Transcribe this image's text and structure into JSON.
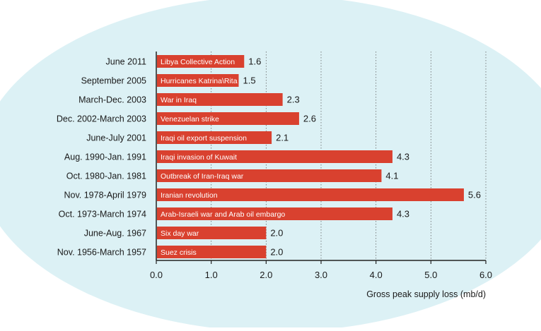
{
  "colors": {
    "background_ellipse": "#dcf1f5",
    "bar": "#d9412f",
    "grid": "#666666",
    "axis": "#222222"
  },
  "chart_data": {
    "type": "bar",
    "orientation": "horizontal",
    "xlabel": "Gross peak supply loss (mb/d)",
    "xlim": [
      0,
      6
    ],
    "xticks": [
      "0.0",
      "1.0",
      "2.0",
      "3.0",
      "4.0",
      "5.0",
      "6.0"
    ],
    "grid": "vertical dotted",
    "bars": [
      {
        "date": "June 2011",
        "event": "Libya Collective Action",
        "value": 1.6,
        "value_label": "1.6"
      },
      {
        "date": "September 2005",
        "event": "Hurricanes Katrina\\Rita",
        "value": 1.5,
        "value_label": "1.5"
      },
      {
        "date": "March-Dec. 2003",
        "event": "War in Iraq",
        "value": 2.3,
        "value_label": "2.3"
      },
      {
        "date": "Dec. 2002-March 2003",
        "event": "Venezuelan strike",
        "value": 2.6,
        "value_label": "2.6"
      },
      {
        "date": "June-July 2001",
        "event": "Iraqi oil export suspension",
        "value": 2.1,
        "value_label": "2.1"
      },
      {
        "date": "Aug. 1990-Jan. 1991",
        "event": "Iraqi invasion of Kuwait",
        "value": 4.3,
        "value_label": "4.3"
      },
      {
        "date": "Oct. 1980-Jan. 1981",
        "event": "Outbreak of Iran-Iraq war",
        "value": 4.1,
        "value_label": "4.1"
      },
      {
        "date": "Nov. 1978-April 1979",
        "event": "Iranian revolution",
        "value": 5.6,
        "value_label": "5.6"
      },
      {
        "date": "Oct. 1973-March 1974",
        "event": "Arab-Israeli war and Arab oil embargo",
        "value": 4.3,
        "value_label": "4.3"
      },
      {
        "date": "June-Aug. 1967",
        "event": "Six day war",
        "value": 2.0,
        "value_label": "2.0"
      },
      {
        "date": "Nov. 1956-March 1957",
        "event": "Suez crisis",
        "value": 2.0,
        "value_label": "2.0"
      }
    ]
  }
}
